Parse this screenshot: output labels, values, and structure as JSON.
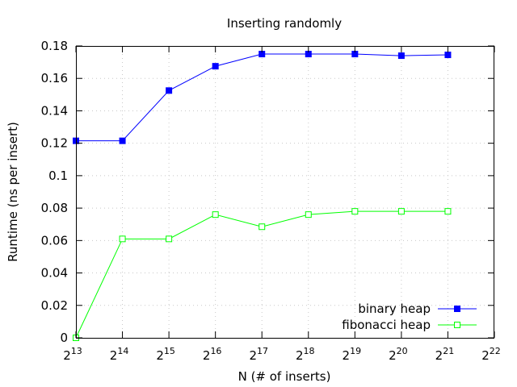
{
  "chart_data": {
    "type": "line",
    "title": "Inserting randomly",
    "xlabel": "N (# of inserts)",
    "ylabel": "Runtime (ns per insert)",
    "x_scale": "log2",
    "x_ticks": [
      {
        "base": "2",
        "exp": "13"
      },
      {
        "base": "2",
        "exp": "14"
      },
      {
        "base": "2",
        "exp": "15"
      },
      {
        "base": "2",
        "exp": "16"
      },
      {
        "base": "2",
        "exp": "17"
      },
      {
        "base": "2",
        "exp": "18"
      },
      {
        "base": "2",
        "exp": "19"
      },
      {
        "base": "2",
        "exp": "20"
      },
      {
        "base": "2",
        "exp": "21"
      },
      {
        "base": "2",
        "exp": "22"
      }
    ],
    "y_ticks": [
      "0",
      "0.02",
      "0.04",
      "0.06",
      "0.08",
      "0.1",
      "0.12",
      "0.14",
      "0.16",
      "0.18"
    ],
    "xlim": [
      8192,
      4194304
    ],
    "ylim": [
      0,
      0.18
    ],
    "grid": true,
    "legend_position": "bottom-right",
    "x": [
      8192,
      16384,
      32768,
      65536,
      131072,
      262144,
      524288,
      1048576,
      2097152
    ],
    "series": [
      {
        "name": "binary heap",
        "color": "#0000ff",
        "marker": "filled-square",
        "values": [
          0.1215,
          0.1215,
          0.1525,
          0.1675,
          0.175,
          0.175,
          0.175,
          0.174,
          0.1745
        ]
      },
      {
        "name": "fibonacci heap",
        "color": "#00ff00",
        "marker": "open-square",
        "values": [
          0.0,
          0.061,
          0.061,
          0.076,
          0.0685,
          0.076,
          0.078,
          0.078,
          0.078
        ]
      }
    ]
  }
}
